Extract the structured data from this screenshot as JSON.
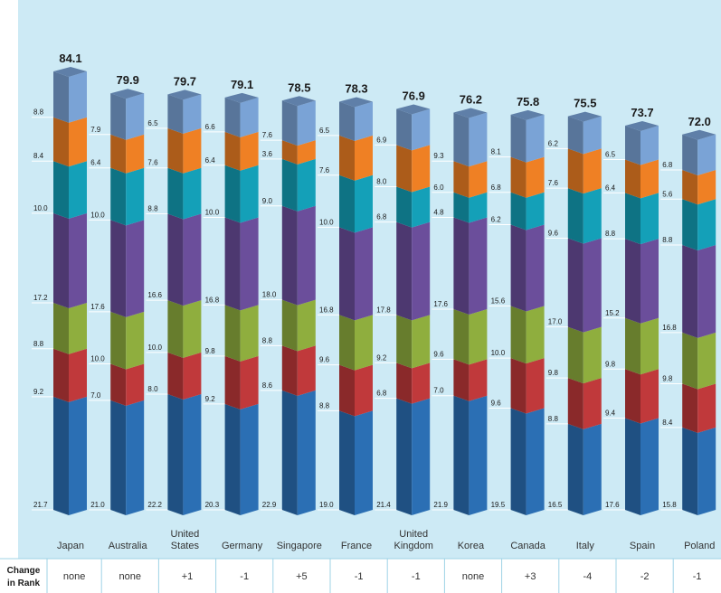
{
  "chart_data": {
    "type": "bar",
    "stacked": true,
    "categories": [
      "Japan",
      "Australia",
      "United States",
      "Germany",
      "Singapore",
      "France",
      "United Kingdom",
      "Korea",
      "Canada",
      "Italy",
      "Spain",
      "Poland"
    ],
    "totals": [
      "84.1",
      "79.9",
      "79.7",
      "79.1",
      "78.5",
      "78.3",
      "76.9",
      "76.2",
      "75.8",
      "75.5",
      "73.7",
      "72.0"
    ],
    "series": [
      {
        "color": "#2b6fb4",
        "values": [
          21.7,
          21.0,
          22.2,
          20.3,
          22.9,
          19.0,
          21.4,
          21.9,
          19.5,
          16.5,
          17.6,
          15.8
        ]
      },
      {
        "color": "#c0393b",
        "values": [
          9.2,
          7.0,
          8.0,
          9.2,
          8.6,
          8.8,
          6.8,
          7.0,
          9.6,
          8.8,
          9.4,
          8.4
        ]
      },
      {
        "color": "#8fae3e",
        "values": [
          8.8,
          10.0,
          10.0,
          9.8,
          8.8,
          9.6,
          9.2,
          9.6,
          10.0,
          9.8,
          9.8,
          9.8
        ]
      },
      {
        "color": "#6b4e9b",
        "values": [
          17.2,
          17.6,
          16.6,
          16.8,
          18.0,
          16.8,
          17.8,
          17.6,
          15.6,
          17.0,
          15.2,
          16.8
        ]
      },
      {
        "color": "#14a0b8",
        "values": [
          10.0,
          10.0,
          8.8,
          10.0,
          9.0,
          10.0,
          6.8,
          4.8,
          6.2,
          9.6,
          8.8,
          8.8
        ]
      },
      {
        "color": "#ef8024",
        "values": [
          8.4,
          6.4,
          7.6,
          6.4,
          3.6,
          7.6,
          8.0,
          6.0,
          6.8,
          7.6,
          6.4,
          5.6
        ]
      },
      {
        "color": "#7aa3d6",
        "values": [
          8.8,
          7.9,
          6.5,
          6.6,
          7.6,
          6.5,
          6.9,
          9.3,
          8.1,
          6.2,
          6.5,
          6.8
        ]
      }
    ],
    "segment_labels": [
      [
        "21.7",
        "21.0",
        "22.2",
        "20.3",
        "22.9",
        "19.0",
        "21.4",
        "21.9",
        "19.5",
        "16.5",
        "17.6",
        "15.8"
      ],
      [
        "9.2",
        "7.0",
        "8.0",
        "9.2",
        "8.6",
        "8.8",
        "6.8",
        "7.0",
        "9.6",
        "8.8",
        "9.4",
        "8.4"
      ],
      [
        "8.8",
        "10.0",
        "10.0",
        "9.8",
        "8.8",
        "9.6",
        "9.2",
        "9.6",
        "10.0",
        "9.8",
        "9.8",
        "9.8"
      ],
      [
        "17.2",
        "17.6",
        "16.6",
        "16.8",
        "18.0",
        "16.8",
        "17.8",
        "17.6",
        "15.6",
        "17.0",
        "15.2",
        "16.8"
      ],
      [
        "10.0",
        "10.0",
        "8.8",
        "10.0",
        "9.0",
        "10.0",
        "6.8",
        "4.8",
        "6.2",
        "9.6",
        "8.8",
        "8.8"
      ],
      [
        "8.4",
        "6.4",
        "7.6",
        "6.4",
        "3.6",
        "7.6",
        "8.0",
        "6.0",
        "6.8",
        "7.6",
        "6.4",
        "5.6"
      ],
      [
        "8.8",
        "7.9",
        "6.5",
        "6.6",
        "7.6",
        "6.5",
        "6.9",
        "9.3",
        "8.1",
        "6.2",
        "6.5",
        "6.8"
      ]
    ],
    "title": "",
    "xlabel": "",
    "ylabel": "",
    "grid": false,
    "legend": "none"
  },
  "rank_table": {
    "header": [
      "Change",
      "in Rank"
    ],
    "values": [
      "none",
      "none",
      "+1",
      "-1",
      "+5",
      "-1",
      "-1",
      "none",
      "+3",
      "-4",
      "-2",
      "-1"
    ]
  },
  "colors": {
    "plot_background": "#cdeaf5",
    "table_background": "#ffffff",
    "table_border": "#9fd3e6"
  }
}
